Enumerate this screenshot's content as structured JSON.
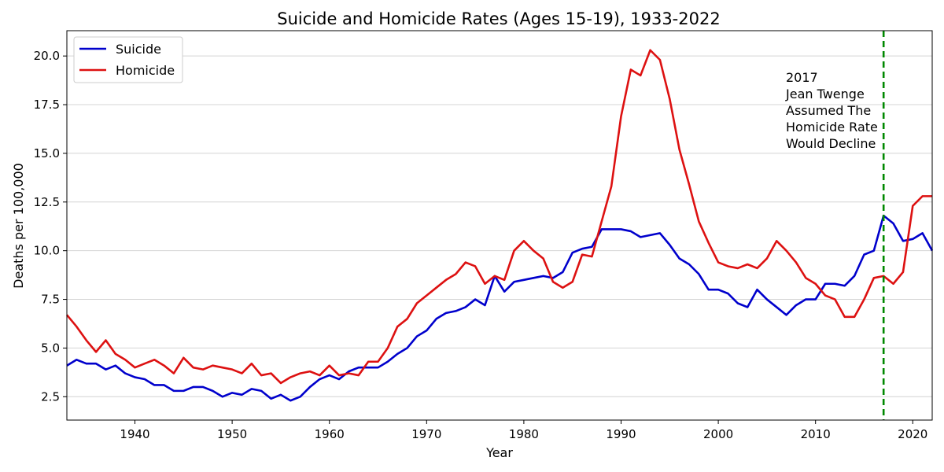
{
  "chart_data": {
    "type": "line",
    "title": "Suicide and Homicide Rates (Ages 15-19), 1933-2022",
    "xlabel": "Year",
    "ylabel": "Deaths per 100,000",
    "xlim": [
      1933,
      2022
    ],
    "ylim": [
      1.3,
      21.3
    ],
    "x_ticks": [
      1940,
      1950,
      1960,
      1970,
      1980,
      1990,
      2000,
      2010,
      2020
    ],
    "y_ticks": [
      2.5,
      5.0,
      7.5,
      10.0,
      12.5,
      15.0,
      17.5,
      20.0
    ],
    "y_tick_labels": [
      "2.5",
      "5.0",
      "7.5",
      "10.0",
      "12.5",
      "15.0",
      "17.5",
      "20.0"
    ],
    "grid": "horizontal",
    "legend_position": "top-left",
    "years": [
      1933,
      1934,
      1935,
      1936,
      1937,
      1938,
      1939,
      1940,
      1941,
      1942,
      1943,
      1944,
      1945,
      1946,
      1947,
      1948,
      1949,
      1950,
      1951,
      1952,
      1953,
      1954,
      1955,
      1956,
      1957,
      1958,
      1959,
      1960,
      1961,
      1962,
      1963,
      1964,
      1965,
      1966,
      1967,
      1968,
      1969,
      1970,
      1971,
      1972,
      1973,
      1974,
      1975,
      1976,
      1977,
      1978,
      1979,
      1980,
      1981,
      1982,
      1983,
      1984,
      1985,
      1986,
      1987,
      1988,
      1989,
      1990,
      1991,
      1992,
      1993,
      1994,
      1995,
      1996,
      1997,
      1998,
      1999,
      2000,
      2001,
      2002,
      2003,
      2004,
      2005,
      2006,
      2007,
      2008,
      2009,
      2010,
      2011,
      2012,
      2013,
      2014,
      2015,
      2016,
      2017,
      2018,
      2019,
      2020,
      2021,
      2022
    ],
    "series": [
      {
        "name": "Suicide",
        "color": "#0000cc",
        "values": [
          4.1,
          4.4,
          4.2,
          4.2,
          3.9,
          4.1,
          3.7,
          3.5,
          3.4,
          3.1,
          3.1,
          2.8,
          2.8,
          3.0,
          3.0,
          2.8,
          2.5,
          2.7,
          2.6,
          2.9,
          2.8,
          2.4,
          2.6,
          2.3,
          2.5,
          3.0,
          3.4,
          3.6,
          3.4,
          3.8,
          4.0,
          4.0,
          4.0,
          4.3,
          4.7,
          5.0,
          5.6,
          5.9,
          6.5,
          6.8,
          6.9,
          7.1,
          7.5,
          7.2,
          8.7,
          7.9,
          8.4,
          8.5,
          8.6,
          8.7,
          8.6,
          8.9,
          9.9,
          10.1,
          10.2,
          11.1,
          11.1,
          11.1,
          11.0,
          10.7,
          10.8,
          10.9,
          10.3,
          9.6,
          9.3,
          8.8,
          8.0,
          8.0,
          7.8,
          7.3,
          7.1,
          8.0,
          7.5,
          7.1,
          6.7,
          7.2,
          7.5,
          7.5,
          8.3,
          8.3,
          8.2,
          8.7,
          9.8,
          10.0,
          11.8,
          11.4,
          10.5,
          10.6,
          10.9,
          10.0
        ]
      },
      {
        "name": "Homicide",
        "color": "#dd1111",
        "values": [
          6.7,
          6.1,
          5.4,
          4.8,
          5.4,
          4.7,
          4.4,
          4.0,
          4.2,
          4.4,
          4.1,
          3.7,
          4.5,
          4.0,
          3.9,
          4.1,
          4.0,
          3.9,
          3.7,
          4.2,
          3.6,
          3.7,
          3.2,
          3.5,
          3.7,
          3.8,
          3.6,
          4.1,
          3.6,
          3.7,
          3.6,
          4.3,
          4.3,
          5.0,
          6.1,
          6.5,
          7.3,
          7.7,
          8.1,
          8.5,
          8.8,
          9.4,
          9.2,
          8.3,
          8.7,
          8.5,
          10.0,
          10.5,
          10.0,
          9.6,
          8.4,
          8.1,
          8.4,
          9.8,
          9.7,
          11.5,
          13.3,
          16.9,
          19.3,
          19.0,
          20.3,
          19.8,
          17.8,
          15.2,
          13.4,
          11.5,
          10.4,
          9.4,
          9.2,
          9.1,
          9.3,
          9.1,
          9.6,
          10.5,
          10.0,
          9.4,
          8.6,
          8.3,
          7.7,
          7.5,
          6.6,
          6.6,
          7.5,
          8.6,
          8.7,
          8.3,
          8.9,
          12.3,
          12.8,
          12.8
        ]
      }
    ],
    "vline": {
      "x": 2017,
      "color": "#008800"
    },
    "annotation": {
      "lines": [
        "2017",
        "Jean Twenge",
        "Assumed The",
        "Homicide Rate",
        "Would Decline"
      ]
    }
  }
}
